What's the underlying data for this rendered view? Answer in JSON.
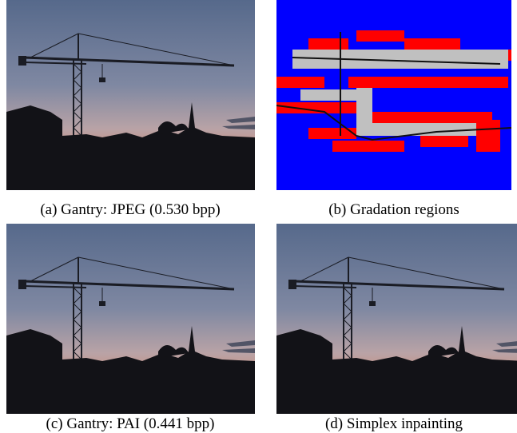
{
  "panels": [
    {
      "caption": "(a) Gantry: JPEG (0.530 bpp)"
    },
    {
      "caption": "(b) Gradation regions"
    },
    {
      "caption": "(c) Gantry: PAI (0.441 bpp)"
    },
    {
      "caption": "(d) Simplex inpainting"
    }
  ]
}
